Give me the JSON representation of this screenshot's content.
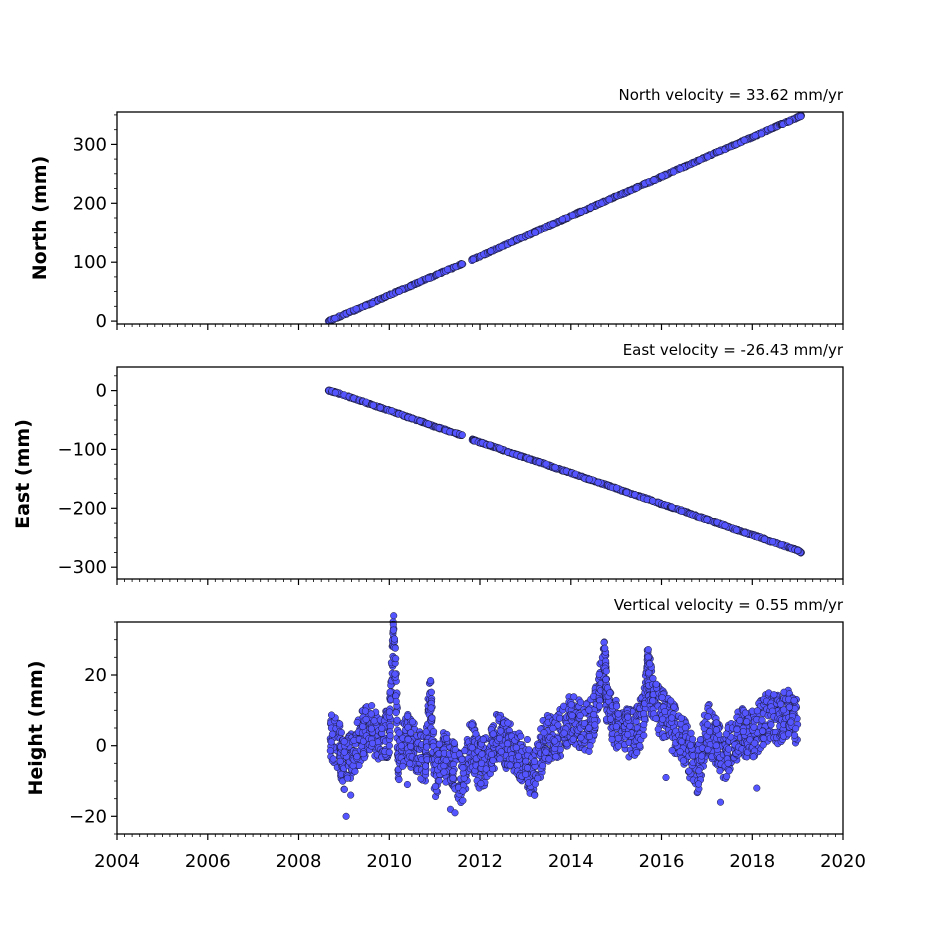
{
  "chart_data": [
    {
      "type": "scatter",
      "title": "North velocity = 33.62 mm/yr",
      "xlabel": "",
      "ylabel": "North (mm)",
      "xlim": [
        2004,
        2020
      ],
      "ylim": [
        -5,
        355
      ],
      "yticks": [
        0,
        100,
        200,
        300
      ],
      "ytick_labels": [
        "0",
        "100",
        "200",
        "300"
      ],
      "show_xtick_labels": false,
      "grid": false,
      "marker_color": "#5555ff",
      "series": [
        {
          "x": [
            2008.66,
            2008.8,
            2009.0,
            2009.2,
            2009.4,
            2009.6,
            2009.8,
            2010.0,
            2010.2,
            2010.4,
            2010.6,
            2010.8,
            2011.0,
            2011.2,
            2011.4,
            2011.6,
            2011.85,
            2012.0,
            2012.2,
            2012.4,
            2012.6,
            2012.8,
            2013.0,
            2013.2,
            2013.4,
            2013.6,
            2013.8,
            2014.0,
            2014.2,
            2014.4,
            2014.6,
            2014.8,
            2015.0,
            2015.2,
            2015.4,
            2015.6,
            2015.8,
            2016.0,
            2016.2,
            2016.4,
            2016.6,
            2016.8,
            2017.0,
            2017.2,
            2017.4,
            2017.6,
            2017.8,
            2018.0,
            2018.2,
            2018.4,
            2018.6,
            2018.8,
            2019.0,
            2019.08
          ],
          "y": [
            0,
            4,
            11,
            17,
            24,
            30,
            37,
            44,
            51,
            57,
            64,
            71,
            77,
            84,
            90,
            97,
            105,
            110,
            117,
            124,
            131,
            138,
            144,
            151,
            158,
            164,
            171,
            178,
            185,
            191,
            198,
            205,
            212,
            218,
            225,
            232,
            238,
            245,
            252,
            259,
            265,
            272,
            279,
            286,
            292,
            299,
            306,
            312,
            319,
            326,
            333,
            339,
            346,
            349
          ]
        }
      ]
    },
    {
      "type": "scatter",
      "title": "East velocity = -26.43 mm/yr",
      "xlabel": "",
      "ylabel": "East (mm)",
      "xlim": [
        2004,
        2020
      ],
      "ylim": [
        -320,
        40
      ],
      "yticks": [
        0,
        -100,
        -200,
        -300
      ],
      "ytick_labels": [
        "0",
        "−100",
        "−200",
        "−300"
      ],
      "show_xtick_labels": false,
      "grid": false,
      "marker_color": "#5555ff",
      "series": [
        {
          "x": [
            2008.66,
            2008.8,
            2009.0,
            2009.2,
            2009.4,
            2009.6,
            2009.8,
            2010.0,
            2010.2,
            2010.4,
            2010.6,
            2010.8,
            2011.0,
            2011.2,
            2011.4,
            2011.6,
            2011.85,
            2012.0,
            2012.2,
            2012.4,
            2012.6,
            2012.8,
            2013.0,
            2013.2,
            2013.4,
            2013.6,
            2013.8,
            2014.0,
            2014.2,
            2014.4,
            2014.6,
            2014.8,
            2015.0,
            2015.2,
            2015.4,
            2015.6,
            2015.8,
            2016.0,
            2016.2,
            2016.4,
            2016.6,
            2016.8,
            2017.0,
            2017.2,
            2017.4,
            2017.6,
            2017.8,
            2018.0,
            2018.2,
            2018.4,
            2018.6,
            2018.8,
            2019.0,
            2019.08
          ],
          "y": [
            0,
            -3,
            -8,
            -13,
            -18,
            -24,
            -29,
            -34,
            -39,
            -45,
            -50,
            -55,
            -61,
            -66,
            -71,
            -76,
            -84,
            -88,
            -93,
            -98,
            -104,
            -109,
            -114,
            -119,
            -124,
            -130,
            -135,
            -140,
            -145,
            -151,
            -156,
            -161,
            -166,
            -172,
            -177,
            -182,
            -187,
            -193,
            -198,
            -203,
            -208,
            -214,
            -219,
            -224,
            -229,
            -235,
            -240,
            -245,
            -250,
            -256,
            -261,
            -266,
            -271,
            -275
          ]
        }
      ]
    },
    {
      "type": "scatter",
      "title": "Vertical velocity = 0.55 mm/yr",
      "xlabel": "",
      "ylabel": "Height (mm)",
      "xlim": [
        2004,
        2020
      ],
      "ylim": [
        -25,
        35
      ],
      "yticks": [
        -20,
        0,
        20
      ],
      "ytick_labels": [
        "−20",
        "0",
        "20"
      ],
      "show_xtick_labels": true,
      "xticks": [
        2004,
        2006,
        2008,
        2010,
        2012,
        2014,
        2016,
        2018,
        2020
      ],
      "xtick_labels": [
        "2004",
        "2006",
        "2008",
        "2010",
        "2012",
        "2014",
        "2016",
        "2018",
        "2020"
      ],
      "grid": false,
      "marker_color": "#5555ff",
      "series": [
        {
          "x": [
            2008.7,
            2008.9,
            2009.0,
            2009.2,
            2009.4,
            2009.6,
            2009.8,
            2010.0,
            2010.1,
            2010.2,
            2010.4,
            2010.6,
            2010.8,
            2010.9,
            2011.0,
            2011.2,
            2011.4,
            2011.6,
            2011.8,
            2012.0,
            2012.2,
            2012.4,
            2012.6,
            2012.8,
            2013.0,
            2013.2,
            2013.4,
            2013.6,
            2013.8,
            2014.0,
            2014.2,
            2014.4,
            2014.6,
            2014.75,
            2014.8,
            2015.0,
            2015.2,
            2015.4,
            2015.6,
            2015.7,
            2015.8,
            2016.0,
            2016.2,
            2016.4,
            2016.6,
            2016.8,
            2017.0,
            2017.2,
            2017.4,
            2017.6,
            2017.8,
            2018.0,
            2018.2,
            2018.4,
            2018.6,
            2018.8,
            2019.0,
            2009.05,
            2009.15,
            2010.4,
            2011.35,
            2011.45,
            2016.1,
            2017.3,
            2018.1
          ],
          "y": [
            2,
            0,
            -6,
            -2,
            3,
            5,
            1,
            4,
            33,
            -3,
            2,
            -1,
            -5,
            15,
            -8,
            -3,
            -5,
            -10,
            1,
            -6,
            -3,
            3,
            0,
            -2,
            -4,
            -9,
            1,
            3,
            4,
            8,
            6,
            5,
            12,
            26,
            10,
            6,
            4,
            3,
            8,
            22,
            14,
            9,
            6,
            3,
            -2,
            -7,
            6,
            1,
            -3,
            2,
            4,
            3,
            6,
            9,
            7,
            10,
            6,
            -20,
            -14,
            -11,
            -18,
            -19,
            -9,
            -16,
            -12
          ]
        }
      ]
    }
  ]
}
